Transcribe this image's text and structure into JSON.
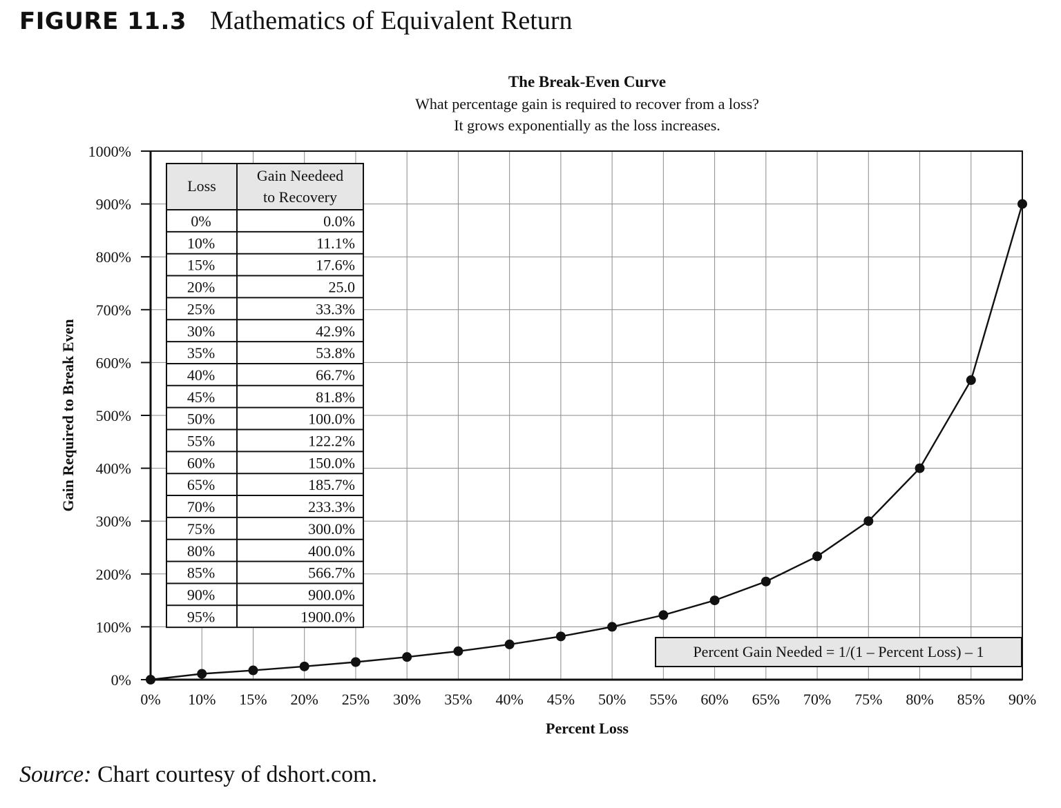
{
  "figure": {
    "label": "FIGURE 11.3",
    "title": "Mathematics of Equivalent Return"
  },
  "source": {
    "label": "Source:",
    "text": "Chart courtesy of dshort.com."
  },
  "chart_data": {
    "type": "line",
    "title": "The Break-Even Curve",
    "subtitle": [
      "What percentage gain is required to recover from a loss?",
      "It grows exponentially as the loss increases."
    ],
    "xlabel": "Percent Loss",
    "ylabel": "Gain Required to Break Even",
    "x_unit": "%",
    "y_unit": "%",
    "xlim": [
      0,
      90
    ],
    "ylim": [
      0,
      1000
    ],
    "x_ticks": [
      0,
      10,
      15,
      20,
      25,
      30,
      35,
      40,
      45,
      50,
      55,
      60,
      65,
      70,
      75,
      80,
      85,
      90
    ],
    "x_tick_labels": [
      "0%",
      "10%",
      "15%",
      "20%",
      "25%",
      "30%",
      "35%",
      "40%",
      "45%",
      "50%",
      "55%",
      "60%",
      "65%",
      "70%",
      "75%",
      "80%",
      "85%",
      "90%"
    ],
    "y_ticks": [
      0,
      100,
      200,
      300,
      400,
      500,
      600,
      700,
      800,
      900,
      1000
    ],
    "y_tick_labels": [
      "0%",
      "100%",
      "200%",
      "300%",
      "400%",
      "500%",
      "600%",
      "700%",
      "800%",
      "900%",
      "1000%"
    ],
    "grid": true,
    "marker": "filled-circle",
    "series": [
      {
        "x": [
          0,
          10,
          15,
          20,
          25,
          30,
          35,
          40,
          45,
          50,
          55,
          60,
          65,
          70,
          75,
          80,
          85,
          90
        ],
        "y": [
          0,
          11.1,
          17.6,
          25.0,
          33.3,
          42.9,
          53.8,
          66.7,
          81.8,
          100.0,
          122.2,
          150.0,
          185.7,
          233.3,
          300.0,
          400.0,
          566.7,
          900.0
        ]
      }
    ],
    "formula": "Percent  Gain Needed = 1/(1 – Percent Loss) – 1",
    "table": {
      "headers": [
        "Loss",
        "Gain Needeed",
        "to Recovery"
      ],
      "rows": [
        [
          "0%",
          "0.0%"
        ],
        [
          "10%",
          "11.1%"
        ],
        [
          "15%",
          "17.6%"
        ],
        [
          "20%",
          "25.0"
        ],
        [
          "25%",
          "33.3%"
        ],
        [
          "30%",
          "42.9%"
        ],
        [
          "35%",
          "53.8%"
        ],
        [
          "40%",
          "66.7%"
        ],
        [
          "45%",
          "81.8%"
        ],
        [
          "50%",
          "100.0%"
        ],
        [
          "55%",
          "122.2%"
        ],
        [
          "60%",
          "150.0%"
        ],
        [
          "65%",
          "185.7%"
        ],
        [
          "70%",
          "233.3%"
        ],
        [
          "75%",
          "300.0%"
        ],
        [
          "80%",
          "400.0%"
        ],
        [
          "85%",
          "566.7%"
        ],
        [
          "90%",
          "900.0%"
        ],
        [
          "95%",
          "1900.0%"
        ]
      ]
    }
  }
}
